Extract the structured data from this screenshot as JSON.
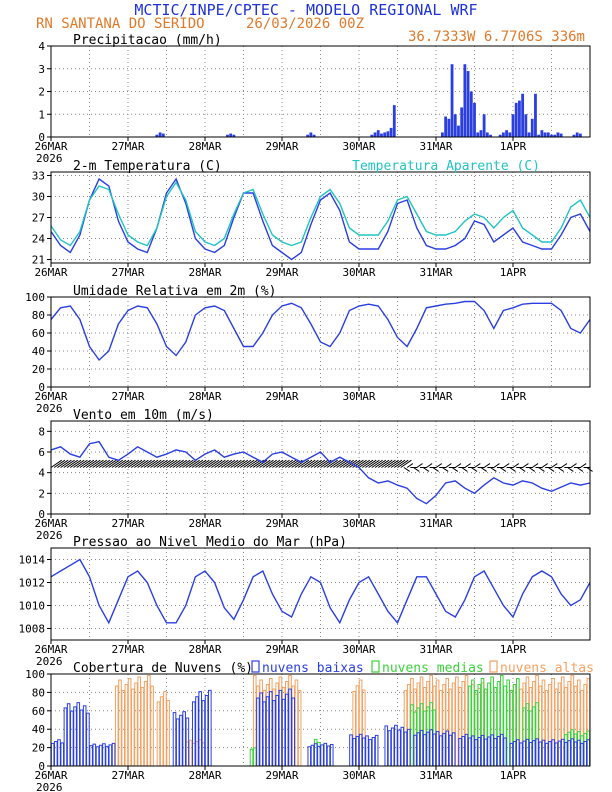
{
  "header": {
    "title": "MCTIC/INPE/CPTEC - MODELO REGIONAL WRF",
    "location": "RN SANTANA DO SERIDO",
    "run": "26/03/2026 00Z",
    "coords": "36.7333W 6.7706S 336m"
  },
  "x_axis": {
    "labels": [
      "26MAR",
      "27MAR",
      "28MAR",
      "29MAR",
      "30MAR",
      "31MAR",
      "1APR"
    ],
    "year_label": "2026",
    "hours_total": 168
  },
  "colors": {
    "frame": "#000000",
    "grid": "#888888",
    "blue": "#2b3fe0",
    "cyan": "#22c3c3",
    "orange": "#f3a263",
    "green": "#3bd23b",
    "header_blue": "#1f32d8",
    "header_orange": "#e07a2a"
  },
  "chart_data": [
    {
      "id": "precip",
      "type": "bar",
      "title": "Precipitacao (mm/h)",
      "ylim": [
        0,
        4
      ],
      "yticks": [
        "0",
        "1",
        "2",
        "3",
        "4"
      ],
      "x_hours": [
        33,
        34,
        35,
        55,
        56,
        57,
        80,
        81,
        82,
        100,
        101,
        102,
        103,
        104,
        105,
        106,
        107,
        122,
        123,
        124,
        125,
        126,
        127,
        128,
        129,
        130,
        131,
        132,
        133,
        134,
        135,
        136,
        137,
        140,
        141,
        142,
        143,
        144,
        145,
        146,
        147,
        148,
        149,
        150,
        151,
        152,
        153,
        154,
        155,
        156,
        157,
        158,
        159,
        163,
        164,
        165
      ],
      "values": [
        0.1,
        0.2,
        0.15,
        0.1,
        0.15,
        0.1,
        0.1,
        0.2,
        0.1,
        0.1,
        0.2,
        0.3,
        0.15,
        0.2,
        0.25,
        0.4,
        1.4,
        0.2,
        0.9,
        0.8,
        3.2,
        1.0,
        0.5,
        1.3,
        3.2,
        2.9,
        2.0,
        1.5,
        0.2,
        0.3,
        1.0,
        0.2,
        0.1,
        0.1,
        0.2,
        0.3,
        0.2,
        1.0,
        1.5,
        1.6,
        1.9,
        1.0,
        0.2,
        0.8,
        1.9,
        0.1,
        0.3,
        0.2,
        0.2,
        0.1,
        0.1,
        0.2,
        0.15,
        0.1,
        0.2,
        0.15
      ]
    },
    {
      "id": "temp",
      "type": "line",
      "title": "2-m Temperatura (C)",
      "legend": "Temperatura Aparente (C)",
      "ylim": [
        20.5,
        33.5
      ],
      "yticks": [
        "21",
        "24",
        "27",
        "30",
        "33"
      ],
      "series": [
        {
          "name": "2-m Temperatura (C)",
          "hours": [
            0,
            3,
            6,
            9,
            12,
            15,
            18,
            21,
            24,
            27,
            30,
            33,
            36,
            39,
            42,
            45,
            48,
            51,
            54,
            57,
            60,
            63,
            66,
            69,
            72,
            75,
            78,
            81,
            84,
            87,
            90,
            93,
            96,
            99,
            102,
            105,
            108,
            111,
            114,
            117,
            120,
            123,
            126,
            129,
            132,
            135,
            138,
            141,
            144,
            147,
            150,
            153,
            156,
            159,
            162,
            165,
            168
          ],
          "values": [
            25.0,
            23.0,
            22.0,
            24.5,
            29.5,
            32.5,
            31.5,
            26.5,
            23.5,
            22.5,
            22.0,
            25.5,
            30.5,
            32.5,
            29.0,
            24.0,
            22.5,
            22.0,
            23.0,
            27.0,
            30.5,
            30.5,
            26.5,
            23.0,
            22.0,
            21.0,
            22.0,
            26.0,
            29.5,
            30.5,
            28.0,
            23.5,
            22.5,
            22.5,
            22.5,
            25.0,
            29.0,
            29.5,
            25.5,
            23.0,
            22.5,
            22.5,
            23.0,
            24.0,
            26.5,
            26.0,
            23.5,
            24.5,
            25.5,
            23.5,
            23.0,
            22.5,
            22.5,
            24.5,
            27.0,
            27.5,
            25.0
          ]
        },
        {
          "name": "Temperatura Aparente (C)",
          "hours": [
            0,
            3,
            6,
            9,
            12,
            15,
            18,
            21,
            24,
            27,
            30,
            33,
            36,
            39,
            42,
            45,
            48,
            51,
            54,
            57,
            60,
            63,
            66,
            69,
            72,
            75,
            78,
            81,
            84,
            87,
            90,
            93,
            96,
            99,
            102,
            105,
            108,
            111,
            114,
            117,
            120,
            123,
            126,
            129,
            132,
            135,
            138,
            141,
            144,
            147,
            150,
            153,
            156,
            159,
            162,
            165,
            168
          ],
          "values": [
            25.8,
            23.8,
            23.0,
            25.0,
            29.5,
            31.5,
            31.0,
            27.5,
            24.5,
            23.5,
            23.0,
            25.5,
            30.0,
            32.0,
            29.5,
            25.0,
            23.5,
            23.0,
            24.0,
            27.5,
            30.5,
            31.0,
            27.5,
            24.5,
            23.5,
            23.0,
            23.5,
            27.0,
            30.0,
            31.0,
            29.0,
            25.5,
            24.5,
            24.5,
            24.5,
            26.5,
            29.5,
            30.0,
            27.5,
            25.0,
            24.5,
            24.5,
            25.0,
            26.5,
            27.5,
            27.0,
            25.5,
            27.0,
            28.0,
            25.5,
            24.5,
            23.5,
            23.5,
            25.5,
            28.5,
            29.5,
            27.0
          ]
        }
      ]
    },
    {
      "id": "humidity",
      "type": "line",
      "title": "Umidade Relativa em 2m (%)",
      "ylim": [
        0,
        100
      ],
      "yticks": [
        "0",
        "20",
        "40",
        "60",
        "80",
        "100"
      ],
      "series": [
        {
          "name": "Umidade Relativa (%)",
          "hours": [
            0,
            3,
            6,
            9,
            12,
            15,
            18,
            21,
            24,
            27,
            30,
            33,
            36,
            39,
            42,
            45,
            48,
            51,
            54,
            57,
            60,
            63,
            66,
            69,
            72,
            75,
            78,
            81,
            84,
            87,
            90,
            93,
            96,
            99,
            102,
            105,
            108,
            111,
            114,
            117,
            120,
            123,
            126,
            129,
            132,
            135,
            138,
            141,
            144,
            147,
            150,
            153,
            156,
            159,
            162,
            165,
            168
          ],
          "values": [
            75,
            88,
            90,
            75,
            45,
            30,
            40,
            70,
            85,
            90,
            88,
            70,
            45,
            35,
            50,
            80,
            88,
            90,
            85,
            65,
            45,
            45,
            60,
            80,
            90,
            93,
            88,
            70,
            50,
            45,
            60,
            85,
            90,
            92,
            90,
            75,
            55,
            45,
            65,
            88,
            90,
            92,
            93,
            95,
            95,
            85,
            65,
            85,
            88,
            92,
            93,
            93,
            93,
            85,
            65,
            60,
            75
          ]
        }
      ]
    },
    {
      "id": "wind",
      "type": "line",
      "title": "Vento em 10m (m/s)",
      "ylim": [
        0,
        9
      ],
      "yticks": [
        "0",
        "2",
        "4",
        "6",
        "8"
      ],
      "series": [
        {
          "name": "Vento em 10m (m/s)",
          "hours": [
            0,
            3,
            6,
            9,
            12,
            15,
            18,
            21,
            24,
            27,
            30,
            33,
            36,
            39,
            42,
            45,
            48,
            51,
            54,
            57,
            60,
            63,
            66,
            69,
            72,
            75,
            78,
            81,
            84,
            87,
            90,
            93,
            96,
            99,
            102,
            105,
            108,
            111,
            114,
            117,
            120,
            123,
            126,
            129,
            132,
            135,
            138,
            141,
            144,
            147,
            150,
            153,
            156,
            159,
            162,
            165,
            168
          ],
          "values": [
            6.2,
            6.5,
            5.8,
            5.5,
            6.8,
            7.0,
            5.5,
            5.2,
            5.8,
            6.5,
            6.0,
            5.5,
            5.8,
            6.2,
            6.0,
            5.2,
            5.8,
            6.2,
            5.5,
            5.8,
            6.0,
            5.5,
            5.0,
            5.8,
            6.0,
            5.5,
            5.0,
            5.5,
            6.0,
            5.0,
            5.5,
            5.0,
            4.5,
            3.5,
            3.0,
            3.2,
            2.8,
            2.5,
            1.5,
            1.0,
            1.8,
            3.0,
            3.2,
            2.5,
            2.0,
            2.8,
            3.5,
            3.0,
            2.8,
            3.2,
            3.0,
            2.5,
            2.2,
            2.6,
            3.0,
            2.8,
            3.0
          ]
        }
      ],
      "barbs": {
        "from_hour": 0,
        "to_hour": 168,
        "step_hours": 1,
        "baseline": 4.5
      }
    },
    {
      "id": "pressure",
      "type": "line",
      "title": "Pressao ao Nivel Medio do Mar (hPa)",
      "ylim": [
        1007,
        1015
      ],
      "yticks": [
        "1008",
        "1010",
        "1012",
        "1014"
      ],
      "series": [
        {
          "name": "Pressao (hPa)",
          "hours": [
            0,
            3,
            6,
            9,
            12,
            15,
            18,
            21,
            24,
            27,
            30,
            33,
            36,
            39,
            42,
            45,
            48,
            51,
            54,
            57,
            60,
            63,
            66,
            69,
            72,
            75,
            78,
            81,
            84,
            87,
            90,
            93,
            96,
            99,
            102,
            105,
            108,
            111,
            114,
            117,
            120,
            123,
            126,
            129,
            132,
            135,
            138,
            141,
            144,
            147,
            150,
            153,
            156,
            159,
            162,
            165,
            168
          ],
          "values": [
            1012.5,
            1013.0,
            1013.5,
            1014.0,
            1012.5,
            1010.0,
            1008.5,
            1010.5,
            1012.5,
            1013.0,
            1012.0,
            1010.0,
            1008.5,
            1008.5,
            1010.0,
            1012.5,
            1013.0,
            1012.0,
            1009.8,
            1008.8,
            1010.5,
            1012.5,
            1013.0,
            1011.0,
            1009.5,
            1009.0,
            1011.0,
            1012.5,
            1012.0,
            1009.8,
            1008.5,
            1010.5,
            1012.0,
            1012.5,
            1011.0,
            1009.5,
            1008.5,
            1010.5,
            1012.5,
            1012.5,
            1011.0,
            1009.5,
            1009.0,
            1010.5,
            1012.5,
            1013.0,
            1011.5,
            1010.0,
            1009.0,
            1011.0,
            1012.5,
            1013.0,
            1012.5,
            1011.0,
            1010.0,
            1010.5,
            1012.0
          ]
        }
      ]
    },
    {
      "id": "clouds",
      "type": "bar",
      "title": "Cobertura de Nuvens (%)",
      "legend": [
        "nuvens baixas",
        "nuvens medias",
        "nuvens altas"
      ],
      "ylim": [
        0,
        100
      ],
      "yticks": [
        "0",
        "20",
        "40",
        "60",
        "80",
        "100"
      ],
      "series": [
        {
          "name": "nuvens altas",
          "segments": [
            {
              "from": 20,
              "to": 32,
              "value": 100
            },
            {
              "from": 33,
              "to": 37,
              "value": 85
            },
            {
              "from": 42,
              "to": 48,
              "value": 30
            },
            {
              "from": 63,
              "to": 78,
              "value": 100
            },
            {
              "from": 94,
              "to": 98,
              "value": 95
            },
            {
              "from": 110,
              "to": 130,
              "value": 100
            },
            {
              "from": 131,
              "to": 136,
              "value": 95
            },
            {
              "from": 143,
              "to": 168,
              "value": 100
            }
          ]
        },
        {
          "name": "nuvens medias",
          "segments": [
            {
              "from": 62,
              "to": 64,
              "value": 20
            },
            {
              "from": 82,
              "to": 84,
              "value": 30
            },
            {
              "from": 112,
              "to": 120,
              "value": 70
            },
            {
              "from": 130,
              "to": 146,
              "value": 100
            },
            {
              "from": 147,
              "to": 152,
              "value": 70
            },
            {
              "from": 160,
              "to": 168,
              "value": 40
            }
          ]
        },
        {
          "name": "nuvens baixas",
          "segments": [
            {
              "from": 0,
              "to": 4,
              "value": 30
            },
            {
              "from": 4,
              "to": 12,
              "value": 70
            },
            {
              "from": 12,
              "to": 20,
              "value": 25
            },
            {
              "from": 38,
              "to": 43,
              "value": 60
            },
            {
              "from": 44,
              "to": 50,
              "value": 85
            },
            {
              "from": 64,
              "to": 76,
              "value": 85
            },
            {
              "from": 80,
              "to": 88,
              "value": 25
            },
            {
              "from": 93,
              "to": 102,
              "value": 35
            },
            {
              "from": 104,
              "to": 112,
              "value": 45
            },
            {
              "from": 113,
              "to": 126,
              "value": 40
            },
            {
              "from": 127,
              "to": 142,
              "value": 35
            },
            {
              "from": 143,
              "to": 168,
              "value": 30
            }
          ]
        }
      ]
    }
  ]
}
